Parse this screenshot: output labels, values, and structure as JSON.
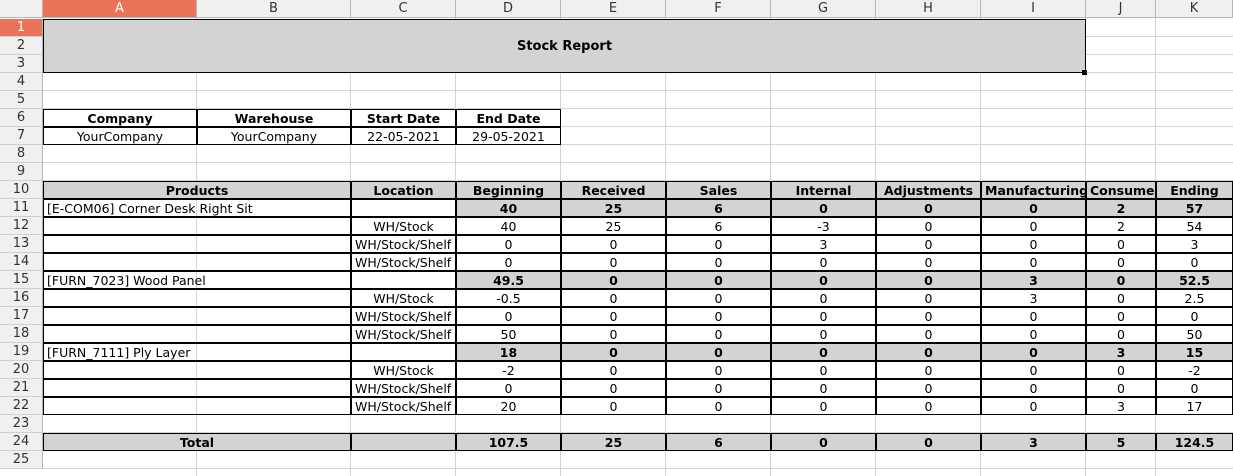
{
  "columns": [
    "A",
    "B",
    "C",
    "D",
    "E",
    "F",
    "G",
    "H",
    "I",
    "J",
    "K"
  ],
  "rows": [
    "1",
    "2",
    "3",
    "4",
    "5",
    "6",
    "7",
    "8",
    "9",
    "10",
    "11",
    "12",
    "13",
    "14",
    "15",
    "16",
    "17",
    "18",
    "19",
    "20",
    "21",
    "22",
    "23",
    "24",
    "25"
  ],
  "selection_color": "#e9745a",
  "header_fill_color": "#d3d3d3",
  "title": "Stock Report",
  "info_headers": [
    "Company",
    "Warehouse",
    "Start Date",
    "End Date"
  ],
  "info_values": [
    "YourCompany",
    "YourCompany",
    "22-05-2021",
    "29-05-2021"
  ],
  "table_headers": [
    "Products",
    "Location",
    "Beginning",
    "Received",
    "Sales",
    "Internal",
    "Adjustments",
    "Manufacturing",
    "Consume",
    "Ending"
  ],
  "table_rows": [
    {
      "product": "[E-COM06] Corner Desk Right Sit",
      "location": "",
      "values": [
        "40",
        "25",
        "6",
        "0",
        "0",
        "0",
        "2",
        "57"
      ],
      "summary": true
    },
    {
      "product": "",
      "location": "WH/Stock",
      "values": [
        "40",
        "25",
        "6",
        "-3",
        "0",
        "0",
        "2",
        "54"
      ],
      "summary": false
    },
    {
      "product": "",
      "location": "WH/Stock/Shelf 1",
      "values": [
        "0",
        "0",
        "0",
        "3",
        "0",
        "0",
        "0",
        "3"
      ],
      "summary": false
    },
    {
      "product": "",
      "location": "WH/Stock/Shelf 2",
      "values": [
        "0",
        "0",
        "0",
        "0",
        "0",
        "0",
        "0",
        "0"
      ],
      "summary": false
    },
    {
      "product": "[FURN_7023] Wood Panel",
      "location": "",
      "values": [
        "49.5",
        "0",
        "0",
        "0",
        "0",
        "3",
        "0",
        "52.5"
      ],
      "summary": true
    },
    {
      "product": "",
      "location": "WH/Stock",
      "values": [
        "-0.5",
        "0",
        "0",
        "0",
        "0",
        "3",
        "0",
        "2.5"
      ],
      "summary": false
    },
    {
      "product": "",
      "location": "WH/Stock/Shelf 1",
      "values": [
        "0",
        "0",
        "0",
        "0",
        "0",
        "0",
        "0",
        "0"
      ],
      "summary": false
    },
    {
      "product": "",
      "location": "WH/Stock/Shelf 2",
      "values": [
        "50",
        "0",
        "0",
        "0",
        "0",
        "0",
        "0",
        "50"
      ],
      "summary": false
    },
    {
      "product": "[FURN_7111] Ply Layer",
      "location": "",
      "values": [
        "18",
        "0",
        "0",
        "0",
        "0",
        "0",
        "3",
        "15"
      ],
      "summary": true
    },
    {
      "product": "",
      "location": "WH/Stock",
      "values": [
        "-2",
        "0",
        "0",
        "0",
        "0",
        "0",
        "0",
        "-2"
      ],
      "summary": false
    },
    {
      "product": "",
      "location": "WH/Stock/Shelf 1",
      "values": [
        "0",
        "0",
        "0",
        "0",
        "0",
        "0",
        "0",
        "0"
      ],
      "summary": false
    },
    {
      "product": "",
      "location": "WH/Stock/Shelf 2",
      "values": [
        "20",
        "0",
        "0",
        "0",
        "0",
        "0",
        "3",
        "17"
      ],
      "summary": false
    }
  ],
  "total": {
    "label": "Total",
    "values": [
      "107.5",
      "25",
      "6",
      "0",
      "0",
      "3",
      "5",
      "124.5"
    ]
  }
}
